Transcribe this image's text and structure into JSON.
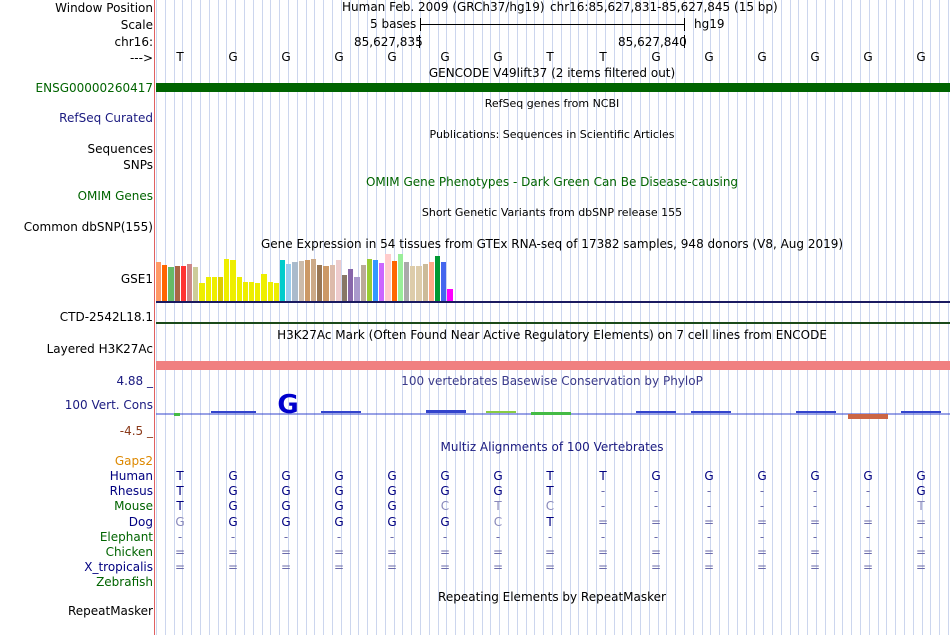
{
  "labels": {
    "window_position": "Window Position",
    "scale": "Scale",
    "chrom": "chr16:",
    "arrow": "--->",
    "gencode": "ENSG00000260417",
    "refseq": "RefSeq Curated",
    "sequences": "Sequences",
    "snps": "SNPs",
    "omim": "OMIM Genes",
    "dbsnp": "Common dbSNP(155)",
    "gse1": "GSE1",
    "ctd": "CTD-2542L18.1",
    "h3k27ac": "Layered H3K27Ac",
    "cons_max": "4.88 _",
    "cons": "100 Vert. Cons",
    "cons_min": "-4.5 _",
    "gaps": "Gaps2",
    "repeatmasker": "RepeatMasker"
  },
  "header": {
    "assembly": "Human Feb. 2009 (GRCh37/hg19)",
    "position": "chr16:85,627,831-85,627,845 (15 bp)",
    "scale_text": "5 bases",
    "db": "hg19",
    "tick1": "85,627,835",
    "tick2": "85,627,840"
  },
  "tracks": {
    "gencode": "GENCODE V49lift37 (2 items filtered out)",
    "refseq": "RefSeq genes from NCBI",
    "publications": "Publications: Sequences in Scientific Articles",
    "omim": "OMIM Gene Phenotypes - Dark Green Can Be Disease-causing",
    "dbsnp": "Short Genetic Variants from dbSNP release 155",
    "gtex": "Gene Expression in 54 tissues from GTEx RNA-seq of 17382 samples, 948 donors (V8, Aug 2019)",
    "h3k27ac": "H3K27Ac Mark (Often Found Near Active Regulatory Elements) on 7 cell lines from ENCODE",
    "phylop": "100 vertebrates Basewise Conservation by PhyloP",
    "multiz": "Multiz Alignments of 100 Vertebrates",
    "repeatmasker": "Repeating Elements by RepeatMasker"
  },
  "sequence": [
    "T",
    "G",
    "G",
    "G",
    "G",
    "G",
    "G",
    "T",
    "T",
    "G",
    "G",
    "G",
    "G",
    "G",
    "G"
  ],
  "multiz": [
    {
      "species": "Human",
      "color": "#000080",
      "bases": [
        "T",
        "G",
        "G",
        "G",
        "G",
        "G",
        "G",
        "T",
        "T",
        "G",
        "G",
        "G",
        "G",
        "G",
        "G"
      ]
    },
    {
      "species": "Rhesus",
      "color": "#000080",
      "bases": [
        "T",
        "G",
        "G",
        "G",
        "G",
        "G",
        "G",
        "T",
        "-",
        "-",
        "-",
        "-",
        "-",
        "-",
        "G"
      ]
    },
    {
      "species": "Mouse",
      "color": "#006400",
      "bases": [
        "T",
        "G",
        "G",
        "G",
        "G",
        "C",
        "T",
        "C",
        "-",
        "-",
        "-",
        "-",
        "-",
        "-",
        "T"
      ]
    },
    {
      "species": "Dog",
      "color": "#000080",
      "bases": [
        "G",
        "G",
        "G",
        "G",
        "G",
        "G",
        "C",
        "T",
        "=",
        "=",
        "=",
        "=",
        "=",
        "=",
        "="
      ]
    },
    {
      "species": "Elephant",
      "color": "#006400",
      "bases": [
        "-",
        "-",
        "-",
        "-",
        "-",
        "-",
        "-",
        "-",
        "-",
        "-",
        "-",
        "-",
        "-",
        "-",
        "-"
      ]
    },
    {
      "species": "Chicken",
      "color": "#006400",
      "bases": [
        "=",
        "=",
        "=",
        "=",
        "=",
        "=",
        "=",
        "=",
        "=",
        "=",
        "=",
        "=",
        "=",
        "=",
        "="
      ]
    },
    {
      "species": "X_tropicalis",
      "color": "#000080",
      "bases": [
        "=",
        "=",
        "=",
        "=",
        "=",
        "=",
        "=",
        "=",
        "=",
        "=",
        "=",
        "=",
        "=",
        "=",
        "="
      ]
    },
    {
      "species": "Zebrafish",
      "color": "#006400",
      "bases": [
        "",
        "",
        "",
        "",
        "",
        "",
        "",
        "",
        "",
        "",
        "",
        "",
        "",
        "",
        ""
      ]
    }
  ],
  "gtex_colors": [
    "#ff9966",
    "#ff6600",
    "#66bb66",
    "#aa6644",
    "#ff3333",
    "#cc8888",
    "#cccc99",
    "#eeee00",
    "#eeee00",
    "#eeee00",
    "#ddcc00",
    "#eeee00",
    "#eeee00",
    "#eeee00",
    "#eeee00",
    "#eeee00",
    "#eeee00",
    "#eeee00",
    "#eeee00",
    "#eeee00",
    "#00cccc",
    "#99ccee",
    "#aabbcc",
    "#ccbbaa",
    "#cc9966",
    "#ccaa88",
    "#997755",
    "#cc9966",
    "#ddbbaa",
    "#eecccc",
    "#887766",
    "#8866aa",
    "#aa99cc",
    "#bbaa99",
    "#99cc33",
    "#3399ff",
    "#cc66ff",
    "#ffcccc",
    "#ff6600",
    "#99ee99",
    "#aaaaaa",
    "#ddccaa",
    "#ddccaa",
    "#ccbb99",
    "#ffaa88",
    "#009933",
    "#4466ee",
    "#ff00ff"
  ],
  "gtex_values": [
    0.82,
    0.77,
    0.72,
    0.74,
    0.75,
    0.78,
    0.72,
    0.38,
    0.5,
    0.5,
    0.52,
    0.9,
    0.88,
    0.5,
    0.4,
    0.4,
    0.38,
    0.58,
    0.4,
    0.38,
    0.88,
    0.78,
    0.82,
    0.85,
    0.88,
    0.9,
    0.76,
    0.74,
    0.76,
    0.88,
    0.55,
    0.68,
    0.5,
    0.76,
    0.9,
    0.88,
    0.8,
    1.0,
    0.85,
    1.0,
    0.82,
    0.75,
    0.74,
    0.78,
    0.84,
    0.95,
    0.84,
    0.26
  ]
}
